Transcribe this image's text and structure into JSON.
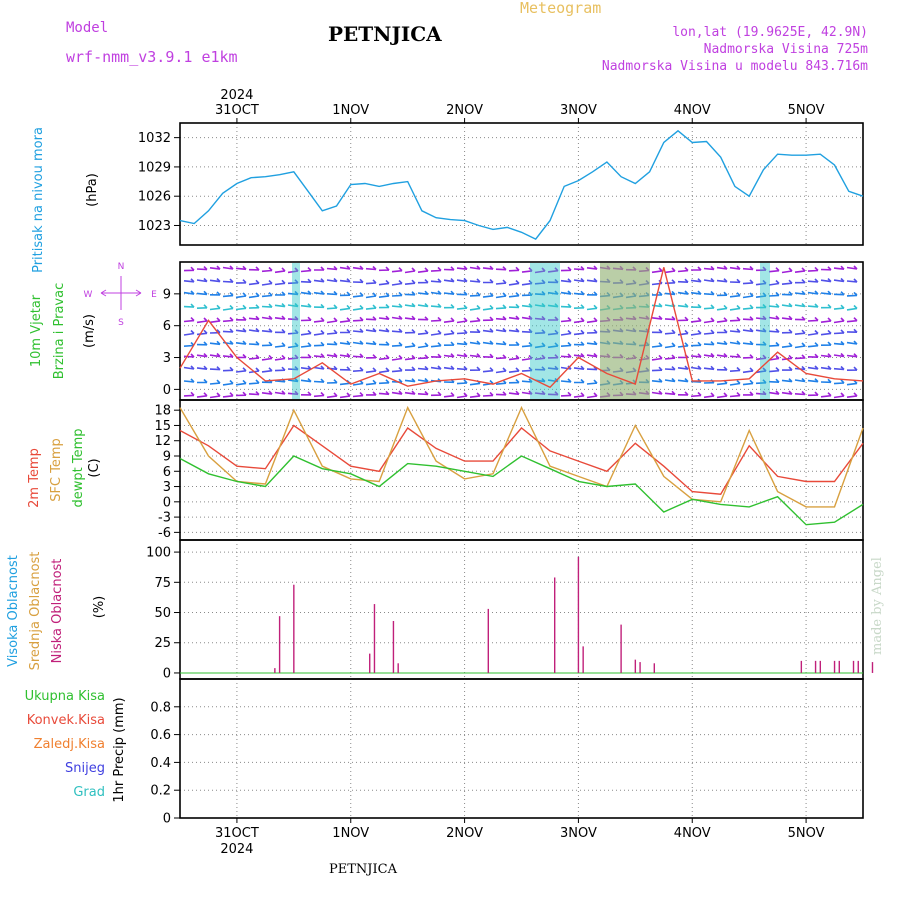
{
  "header": {
    "model_label": "Model",
    "model_name": "wrf-nmm_v3.9.1 e1km",
    "station": "PETNJICA",
    "meteogram": "Meteogram",
    "lonlat": "lon,lat (19.9625E, 42.9N)",
    "altitude": "Nadmorska Visina 725m",
    "model_altitude": "Nadmorska Visina u modelu 843.716m",
    "footer_station": "PETNJICA",
    "credit": "made by Angel"
  },
  "colors": {
    "purple": "#c040e0",
    "gold": "#e8c060",
    "cyan": "#20a0e0",
    "pressure": "#20a0e0",
    "temp2m": "#e84a3a",
    "sfc": "#d8a040",
    "dewpt": "#30c030",
    "low_cloud": "#c0207a",
    "grid": "#808080"
  },
  "chart_data": [
    {
      "type": "line",
      "panel": "pressure",
      "ylabel": [
        "Pritisak na nivou mora",
        "(hPa)"
      ],
      "yticks": [
        1023,
        1026,
        1029,
        1032
      ],
      "ylim": [
        1021,
        1033.5
      ],
      "x_start": "2024-10-30T12:00",
      "x_end": "2024-11-05T12:00",
      "x_top_year": "2024",
      "x_ticks": [
        "31OCT",
        "1NOV",
        "2NOV",
        "3NOV",
        "4NOV",
        "5NOV"
      ],
      "series": [
        {
          "name": "",
          "color": "#20a0e0",
          "x": [
            "2024-10-30T12:00",
            "2024-10-30T15:00",
            "2024-10-30T18:00",
            "2024-10-30T21:00",
            "2024-10-31T00:00",
            "2024-10-31T03:00",
            "2024-10-31T06:00",
            "2024-10-31T09:00",
            "2024-10-31T12:00",
            "2024-10-31T15:00",
            "2024-10-31T18:00",
            "2024-10-31T21:00",
            "2024-11-01T00:00",
            "2024-11-01T03:00",
            "2024-11-01T06:00",
            "2024-11-01T09:00",
            "2024-11-01T12:00",
            "2024-11-01T15:00",
            "2024-11-01T18:00",
            "2024-11-01T21:00",
            "2024-11-02T00:00",
            "2024-11-02T03:00",
            "2024-11-02T06:00",
            "2024-11-02T09:00",
            "2024-11-02T12:00",
            "2024-11-02T15:00",
            "2024-11-02T18:00",
            "2024-11-02T21:00",
            "2024-11-03T00:00",
            "2024-11-03T03:00",
            "2024-11-03T06:00",
            "2024-11-03T09:00",
            "2024-11-03T12:00",
            "2024-11-03T15:00",
            "2024-11-03T18:00",
            "2024-11-03T21:00",
            "2024-11-04T00:00",
            "2024-11-04T03:00",
            "2024-11-04T06:00",
            "2024-11-04T09:00",
            "2024-11-04T12:00",
            "2024-11-04T15:00",
            "2024-11-04T18:00",
            "2024-11-04T21:00",
            "2024-11-05T00:00",
            "2024-11-05T03:00",
            "2024-11-05T06:00",
            "2024-11-05T09:00",
            "2024-11-05T12:00"
          ],
          "values": [
            1023.5,
            1023.2,
            1024.5,
            1026.3,
            1027.3,
            1027.9,
            1028.0,
            1028.2,
            1028.5,
            1026.5,
            1024.5,
            1025.0,
            1027.2,
            1027.3,
            1027.0,
            1027.3,
            1027.5,
            1024.5,
            1023.8,
            1023.6,
            1023.5,
            1023.0,
            1022.6,
            1022.8,
            1022.3,
            1021.6,
            1023.5,
            1027.0,
            1027.6,
            1028.5,
            1029.5,
            1028.0,
            1027.3,
            1028.5,
            1031.5,
            1032.7,
            1031.5,
            1031.6,
            1030.0,
            1027.0,
            1026.0,
            1028.7,
            1030.3,
            1030.2,
            1030.2,
            1030.3,
            1029.2,
            1026.5,
            1026.0
          ]
        }
      ]
    },
    {
      "type": "line",
      "panel": "wind",
      "ylabel": [
        "10m Vjetar",
        "Brzina i Pravac",
        "(m/s)"
      ],
      "compass": [
        "N",
        "W",
        "E",
        "S"
      ],
      "yticks": [
        0,
        3,
        6,
        9
      ],
      "ylim": [
        -1,
        12
      ],
      "series": [
        {
          "name": "",
          "color": "#e84a3a",
          "x": [
            "2024-10-30T12:00",
            "2024-10-30T18:00",
            "2024-10-31T00:00",
            "2024-10-31T06:00",
            "2024-10-31T12:00",
            "2024-10-31T18:00",
            "2024-11-01T00:00",
            "2024-11-01T06:00",
            "2024-11-01T12:00",
            "2024-11-01T18:00",
            "2024-11-02T00:00",
            "2024-11-02T06:00",
            "2024-11-02T12:00",
            "2024-11-02T18:00",
            "2024-11-03T00:00",
            "2024-11-03T06:00",
            "2024-11-03T12:00",
            "2024-11-03T18:00",
            "2024-11-04T00:00",
            "2024-11-04T06:00",
            "2024-11-04T12:00",
            "2024-11-04T18:00",
            "2024-11-05T00:00",
            "2024-11-05T06:00",
            "2024-11-05T12:00"
          ],
          "values": [
            2.0,
            6.5,
            3.0,
            0.8,
            1.0,
            2.5,
            0.5,
            1.5,
            0.3,
            0.8,
            1.0,
            0.5,
            1.5,
            0.2,
            3.0,
            1.5,
            0.5,
            11.5,
            0.8,
            0.8,
            1.0,
            3.5,
            1.5,
            1.0,
            0.8
          ]
        }
      ]
    },
    {
      "type": "line",
      "panel": "temperature",
      "ylabel": [
        "2m Temp",
        "SFC Temp",
        "dewpt Temp",
        "(C)"
      ],
      "yticks": [
        -6,
        -3,
        0,
        3,
        6,
        9,
        12,
        15,
        18
      ],
      "ylim": [
        -7.5,
        20
      ],
      "series": [
        {
          "name": "2m Temp",
          "color": "#e84a3a",
          "x": [
            "2024-10-30T12:00",
            "2024-10-30T18:00",
            "2024-10-31T00:00",
            "2024-10-31T06:00",
            "2024-10-31T12:00",
            "2024-10-31T18:00",
            "2024-11-01T00:00",
            "2024-11-01T06:00",
            "2024-11-01T12:00",
            "2024-11-01T18:00",
            "2024-11-02T00:00",
            "2024-11-02T06:00",
            "2024-11-02T12:00",
            "2024-11-02T18:00",
            "2024-11-03T00:00",
            "2024-11-03T06:00",
            "2024-11-03T12:00",
            "2024-11-03T18:00",
            "2024-11-04T00:00",
            "2024-11-04T06:00",
            "2024-11-04T12:00",
            "2024-11-04T18:00",
            "2024-11-05T00:00",
            "2024-11-05T06:00",
            "2024-11-05T12:00"
          ],
          "values": [
            14.0,
            11.0,
            7.0,
            6.5,
            15.0,
            11.0,
            7.0,
            6.0,
            14.5,
            10.5,
            8.0,
            8.0,
            14.5,
            10.0,
            8.0,
            6.0,
            11.5,
            7.0,
            2.0,
            1.5,
            11.0,
            5.0,
            4.0,
            4.0,
            11.5
          ]
        },
        {
          "name": "SFC Temp",
          "color": "#d8a040",
          "x": [
            "2024-10-30T12:00",
            "2024-10-30T18:00",
            "2024-10-31T00:00",
            "2024-10-31T06:00",
            "2024-10-31T12:00",
            "2024-10-31T18:00",
            "2024-11-01T00:00",
            "2024-11-01T06:00",
            "2024-11-01T12:00",
            "2024-11-01T18:00",
            "2024-11-02T00:00",
            "2024-11-02T06:00",
            "2024-11-02T12:00",
            "2024-11-02T18:00",
            "2024-11-03T00:00",
            "2024-11-03T06:00",
            "2024-11-03T12:00",
            "2024-11-03T18:00",
            "2024-11-04T00:00",
            "2024-11-04T06:00",
            "2024-11-04T12:00",
            "2024-11-04T18:00",
            "2024-11-05T00:00",
            "2024-11-05T06:00",
            "2024-11-05T12:00"
          ],
          "values": [
            18.5,
            9.0,
            4.0,
            3.5,
            18.0,
            7.0,
            4.5,
            4.0,
            18.5,
            8.0,
            4.5,
            5.5,
            18.5,
            7.0,
            5.0,
            3.0,
            15.0,
            5.0,
            0.5,
            0.0,
            14.0,
            2.0,
            -1.0,
            -1.0,
            14.5
          ]
        },
        {
          "name": "dewpt Temp",
          "color": "#30c030",
          "x": [
            "2024-10-30T12:00",
            "2024-10-30T18:00",
            "2024-10-31T00:00",
            "2024-10-31T06:00",
            "2024-10-31T12:00",
            "2024-10-31T18:00",
            "2024-11-01T00:00",
            "2024-11-01T06:00",
            "2024-11-01T12:00",
            "2024-11-01T18:00",
            "2024-11-02T00:00",
            "2024-11-02T06:00",
            "2024-11-02T12:00",
            "2024-11-02T18:00",
            "2024-11-03T00:00",
            "2024-11-03T06:00",
            "2024-11-03T12:00",
            "2024-11-03T18:00",
            "2024-11-04T00:00",
            "2024-11-04T06:00",
            "2024-11-04T12:00",
            "2024-11-04T18:00",
            "2024-11-05T00:00",
            "2024-11-05T06:00",
            "2024-11-05T12:00"
          ],
          "values": [
            8.5,
            5.5,
            4.0,
            3.0,
            9.0,
            6.5,
            5.5,
            3.0,
            7.5,
            7.0,
            6.0,
            5.0,
            9.0,
            6.5,
            4.0,
            3.0,
            3.5,
            -2.0,
            0.5,
            -0.5,
            -1.0,
            1.0,
            -4.5,
            -4.0,
            -0.5
          ]
        }
      ]
    },
    {
      "type": "bar",
      "panel": "cloud",
      "ylabel": [
        "Visoka Oblacnost",
        "Srednja Oblacnost",
        "Niska Oblacnost",
        "(%)"
      ],
      "yticks": [
        0,
        25,
        50,
        75,
        100
      ],
      "ylim": [
        -5,
        110
      ],
      "series": [
        {
          "name": "Niska Oblacnost",
          "color": "#c0207a",
          "x": [
            "2024-10-31T08:00",
            "2024-10-31T09:00",
            "2024-10-31T12:00",
            "2024-11-01T04:00",
            "2024-11-01T05:00",
            "2024-11-01T09:00",
            "2024-11-01T10:00",
            "2024-11-02T05:00",
            "2024-11-02T19:00",
            "2024-11-03T00:00",
            "2024-11-03T01:00",
            "2024-11-03T09:00",
            "2024-11-03T12:00",
            "2024-11-03T13:00",
            "2024-11-03T16:00",
            "2024-11-04T23:00",
            "2024-11-05T02:00",
            "2024-11-05T03:00",
            "2024-11-05T06:00",
            "2024-11-05T07:00",
            "2024-11-05T10:00",
            "2024-11-05T11:00",
            "2024-11-05T14:00"
          ],
          "values": [
            4,
            47,
            73,
            16,
            57,
            43,
            8,
            53,
            79,
            96,
            22,
            40,
            11,
            9,
            8,
            10,
            10,
            10,
            10,
            10,
            10,
            10,
            9
          ]
        }
      ]
    },
    {
      "type": "bar",
      "panel": "precipitation",
      "ylabel": [
        "Ukupna Kisa",
        "Konvek.Kisa",
        "Zaledj.Kisa",
        "Snijeg",
        "Grad",
        "1hr Precip (mm)"
      ],
      "yticks": [
        0,
        0.2,
        0.4,
        0.6,
        0.8
      ],
      "ylim": [
        0,
        1.0
      ],
      "series": []
    }
  ],
  "legend": {
    "precip_labels": [
      {
        "text": "Ukupna Kisa",
        "color": "#30c030"
      },
      {
        "text": "Konvek.Kisa",
        "color": "#e84a3a"
      },
      {
        "text": "Zaledj.Kisa",
        "color": "#f08030"
      },
      {
        "text": "Snijeg",
        "color": "#4040e0"
      },
      {
        "text": "Grad",
        "color": "#30c0c0"
      }
    ]
  }
}
